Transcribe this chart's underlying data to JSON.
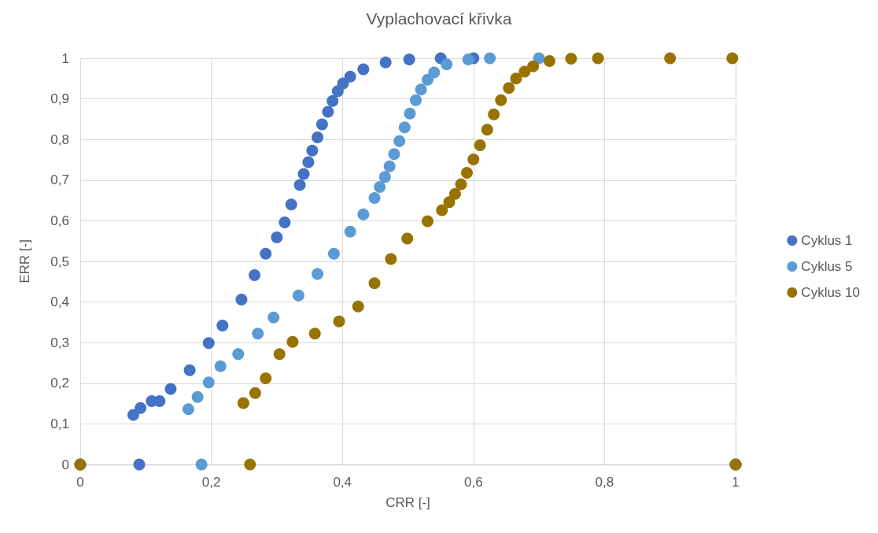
{
  "chart_data": {
    "type": "scatter",
    "title": "Vyplachovací křivka",
    "xlabel": "CRR [-]",
    "ylabel": "ERR [-]",
    "marker": "circle",
    "grid": true,
    "legend": "right",
    "xlim": [
      0,
      1
    ],
    "ylim": [
      0,
      1
    ],
    "xticks": [
      0,
      {
        "value": 0.2,
        "label": "0,2"
      },
      {
        "value": 0.4,
        "label": "0,4"
      },
      {
        "value": 0.6,
        "label": "0,6"
      },
      {
        "value": 0.8,
        "label": "0,8"
      },
      1
    ],
    "yticks": [
      0,
      {
        "value": 0.1,
        "label": "0,1"
      },
      {
        "value": 0.2,
        "label": "0,2"
      },
      {
        "value": 0.3,
        "label": "0,3"
      },
      {
        "value": 0.4,
        "label": "0,4"
      },
      {
        "value": 0.5,
        "label": "0,5"
      },
      {
        "value": 0.6,
        "label": "0,6"
      },
      {
        "value": 0.7,
        "label": "0,7"
      },
      {
        "value": 0.8,
        "label": "0,8"
      },
      {
        "value": 0.9,
        "label": "0,9"
      },
      1
    ],
    "series": [
      {
        "name": "Cyklus 1",
        "color": "#4472c4",
        "x": [
          0,
          0.09,
          1,
          0.081,
          0.092,
          0.109,
          0.121,
          0.138,
          0.167,
          0.196,
          0.217,
          0.246,
          0.266,
          0.283,
          0.3,
          0.312,
          0.322,
          0.335,
          0.341,
          0.348,
          0.354,
          0.362,
          0.369,
          0.378,
          0.385,
          0.393,
          0.401,
          0.412,
          0.432,
          0.466,
          0.502,
          0.55,
          0.6
        ],
        "values": [
          0,
          0,
          0,
          0.122,
          0.139,
          0.156,
          0.156,
          0.186,
          0.232,
          0.299,
          0.342,
          0.406,
          0.466,
          0.519,
          0.559,
          0.596,
          0.64,
          0.688,
          0.715,
          0.744,
          0.773,
          0.805,
          0.837,
          0.868,
          0.895,
          0.919,
          0.938,
          0.955,
          0.973,
          0.99,
          0.997,
          1,
          1
        ]
      },
      {
        "name": "Cyklus 5",
        "color": "#5b9bd5",
        "x": [
          0,
          0.185,
          1,
          0.165,
          0.179,
          0.196,
          0.214,
          0.241,
          0.271,
          0.295,
          0.333,
          0.362,
          0.387,
          0.412,
          0.432,
          0.449,
          0.457,
          0.465,
          0.472,
          0.479,
          0.487,
          0.495,
          0.503,
          0.512,
          0.52,
          0.53,
          0.54,
          0.559,
          0.592,
          0.625,
          0.7
        ],
        "values": [
          0,
          0,
          0,
          0.136,
          0.166,
          0.202,
          0.242,
          0.272,
          0.322,
          0.362,
          0.416,
          0.469,
          0.519,
          0.573,
          0.616,
          0.656,
          0.683,
          0.708,
          0.734,
          0.764,
          0.796,
          0.83,
          0.864,
          0.897,
          0.923,
          0.947,
          0.965,
          0.985,
          0.997,
          1,
          1
        ]
      },
      {
        "name": "Cyklus 10",
        "color": "#997300",
        "x": [
          0,
          0.259,
          1,
          0.249,
          0.267,
          0.283,
          0.304,
          0.324,
          0.358,
          0.395,
          0.424,
          0.449,
          0.474,
          0.499,
          0.53,
          0.552,
          0.563,
          0.572,
          0.581,
          0.59,
          0.6,
          0.61,
          0.621,
          0.631,
          0.642,
          0.654,
          0.665,
          0.678,
          0.691,
          0.716,
          0.749,
          0.79,
          0.9,
          0.995
        ],
        "values": [
          0,
          0,
          0,
          0.151,
          0.176,
          0.212,
          0.272,
          0.302,
          0.322,
          0.352,
          0.389,
          0.446,
          0.506,
          0.556,
          0.599,
          0.626,
          0.646,
          0.666,
          0.69,
          0.718,
          0.751,
          0.786,
          0.824,
          0.862,
          0.897,
          0.927,
          0.95,
          0.967,
          0.98,
          0.993,
          0.999,
          1,
          1,
          1
        ]
      }
    ]
  }
}
